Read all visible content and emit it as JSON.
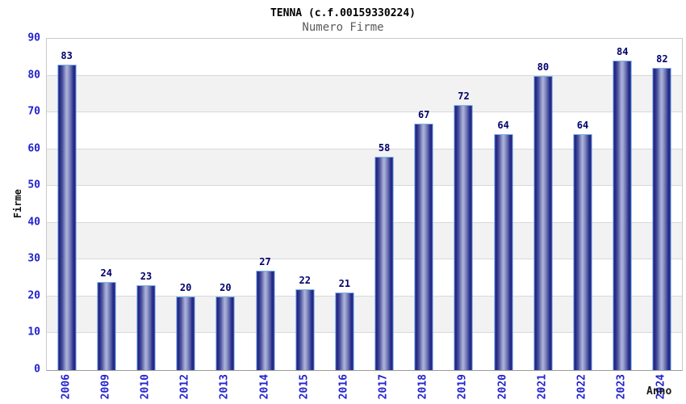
{
  "chart_data": {
    "type": "bar",
    "title": "TENNA (c.f.00159330224)",
    "subtitle": "Numero Firme",
    "xlabel": "Anno",
    "ylabel": "Firme",
    "categories": [
      "2006",
      "2009",
      "2010",
      "2012",
      "2013",
      "2014",
      "2015",
      "2016",
      "2017",
      "2018",
      "2019",
      "2020",
      "2021",
      "2022",
      "2023",
      "2024"
    ],
    "values": [
      83,
      24,
      23,
      20,
      20,
      27,
      22,
      21,
      58,
      67,
      72,
      64,
      80,
      64,
      84,
      82
    ],
    "ylim": [
      0,
      90
    ],
    "yticks": [
      0,
      10,
      20,
      30,
      40,
      50,
      60,
      70,
      80,
      90
    ],
    "grid": true,
    "legend": null,
    "colors": {
      "axis_text_blue": "#2323cd",
      "value_label_navy": "#00006b",
      "subtitle_gray": "#5a5a5a",
      "band_gray": "#f2f2f2",
      "band_white": "#ffffff",
      "gridline": "#d9d9d9",
      "bar_edge_dark": "#1f1f78",
      "bar_mid_light": "#aeb4da",
      "bar_border": "#4e8ede",
      "bar_border_top": "#79b3ea"
    }
  }
}
